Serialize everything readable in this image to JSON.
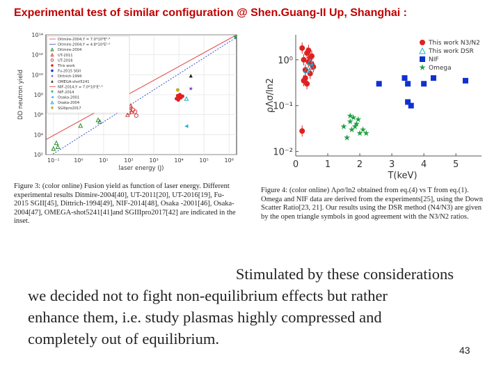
{
  "slide": {
    "title": "Experimental test of similar configuration @ Shen.Guang-II Up, Shanghai :",
    "page_number": "43"
  },
  "figure3": {
    "caption": "Figure 3: (color online) Fusion yield as function of laser energy. Different experimental results Ditmire-2004[40], UT-2011[20], UT-2016[19], Fu-2015 SGII[45], Dittrich-1994[49], NIF-2014[48], Osaka -2001[46], Osaka-2004[47], OMEGA-shot5241[41]and SGIIIpro2017[42] are indicated in the inset.",
    "ylabel": "DD neutron yield",
    "xlabel": "laser energy (J)",
    "legend": [
      "Ditmire-2004,Y = 7.0*10⁵E¹·⁸",
      "Ditmire-2004,Y = 4.8*10³E¹·⁶",
      "Ditmire-2004",
      "UT-2011",
      "UT-2016",
      "This work",
      "Fu-2015 SGII",
      "Dittrich-1994",
      "OMEGA-shot5241",
      "NIF-2014,Y = 7.0*10⁵E¹·⁸",
      "NIF-2014",
      "Osaka-2001",
      "Osaka-2004",
      "SGIIIpro2017"
    ],
    "y_ticks": [
      "10¹⁴",
      "10¹²",
      "10¹⁰",
      "10⁸",
      "10⁶",
      "10⁴",
      "10²"
    ],
    "x_ticks": [
      "10⁻¹",
      "10⁰",
      "10¹",
      "10²",
      "10³",
      "10⁴",
      "10⁵",
      "10⁶"
    ]
  },
  "figure4": {
    "caption": "Figure 4: (color online) Λρσ/ln2 obtained from eq.(4) vs T from eq.(1). Omega and NIF data are derived from the experiments[25], using the Down Scatter Ratio[23, 21]. Our results using the DSR method (N4/N3) are given by the open triangle symbols in good agreement with the N3/N2 ratios.",
    "ylabel": "ρΛσ/ln2",
    "xlabel": "T(keV)",
    "y_ticks": [
      "10⁰",
      "10⁻¹",
      "10⁻²"
    ],
    "x_ticks": [
      "0",
      "1",
      "2",
      "3",
      "4",
      "5"
    ],
    "legend": [
      "This work N3/N2",
      "This work DSR",
      "NIF",
      "Omega"
    ],
    "colors": {
      "this_work": "#e02020",
      "dsr": "#20b0d0",
      "nif": "#1030d0",
      "omega": "#20a040"
    }
  },
  "body_text": {
    "line1": "Stimulated by these considerations",
    "line2": "we decided not to fight non-equilibrium effects but rather",
    "line3": "enhance them, i.e. study plasmas highly compressed and",
    "line4": "completely out of equilibrium."
  },
  "chart_data": [
    {
      "type": "scatter",
      "title": "",
      "xlabel": "laser energy (J)",
      "ylabel": "DD neutron yield",
      "log_x": true,
      "log_y": true,
      "xlim": [
        0.05,
        2000000
      ],
      "ylim": [
        100,
        100000000000000
      ],
      "grid": true,
      "legend_position": "top-left",
      "series": [
        {
          "name": "Ditmire-2004",
          "marker": "triangle-open",
          "color": "#2c8c2c",
          "x": [
            0.1,
            0.13,
            0.15,
            1.2,
            6,
            7
          ],
          "y": [
            400,
            1500,
            600,
            80000,
            300000,
            200000
          ]
        },
        {
          "name": "UT-2011",
          "marker": "triangle-open",
          "color": "#d04040",
          "x": [
            90,
            110,
            120,
            130
          ],
          "y": [
            1000000,
            3000000,
            8000000,
            2000000
          ]
        },
        {
          "name": "UT-2016",
          "marker": "circle-open",
          "color": "#d04040",
          "x": [
            100,
            110,
            150,
            200,
            180
          ],
          "y": [
            1500000,
            5000000,
            3000000,
            800000,
            2000000
          ]
        },
        {
          "name": "This work",
          "marker": "circle",
          "color": "#e02020",
          "x": [
            8000,
            9000,
            10000,
            11000,
            12000,
            14000,
            9500,
            10500
          ],
          "y": [
            40000000,
            80000000,
            60000000,
            100000000,
            50000000,
            70000000,
            30000000,
            45000000
          ]
        },
        {
          "name": "Dittrich-1994",
          "marker": "star",
          "color": "#8030c0",
          "x": [
            30000
          ],
          "y": [
            400000000
          ]
        },
        {
          "name": "OMEGA-shot5241",
          "marker": "triangle",
          "color": "#222222",
          "x": [
            30000
          ],
          "y": [
            8000000000
          ]
        },
        {
          "name": "NIF-2014",
          "marker": "triangle-down",
          "color": "#20a040",
          "x": [
            1800000
          ],
          "y": [
            50000000000000
          ]
        },
        {
          "name": "Osaka-2001",
          "marker": "triangle-left",
          "color": "#20b0d0",
          "x": [
            20000
          ],
          "y": [
            70000
          ]
        },
        {
          "name": "Osaka-2004",
          "marker": "triangle-open",
          "color": "#20b0d0",
          "x": [
            20000
          ],
          "y": [
            40000000
          ]
        },
        {
          "name": "SGIIIpro2017",
          "marker": "circle",
          "color": "#c0b020",
          "x": [
            9000
          ],
          "y": [
            300000000
          ]
        }
      ]
    },
    {
      "type": "scatter",
      "title": "",
      "xlabel": "T(keV)",
      "ylabel": "ρΛσ/ln2",
      "log_y": true,
      "xlim": [
        0,
        5.8
      ],
      "ylim": [
        0.008,
        3.5
      ],
      "grid": false,
      "legend_position": "top-right",
      "series": [
        {
          "name": "This work N3/N2",
          "marker": "circle",
          "color": "#e02020",
          "x": [
            0.2,
            0.25,
            0.3,
            0.35,
            0.4,
            0.45,
            0.5,
            0.55,
            0.3,
            0.4,
            0.5,
            0.25,
            0.45,
            0.35,
            0.2
          ],
          "y": [
            1.8,
            1.0,
            0.6,
            1.4,
            0.9,
            0.5,
            1.2,
            0.7,
            0.4,
            1.6,
            0.8,
            0.35,
            1.1,
            0.3,
            0.028
          ]
        },
        {
          "name": "This work DSR",
          "marker": "triangle-open",
          "color": "#20b0d0",
          "x": [
            0.35,
            0.45,
            0.5
          ],
          "y": [
            0.6,
            0.9,
            0.7
          ]
        },
        {
          "name": "NIF",
          "marker": "square",
          "color": "#1030d0",
          "x": [
            2.6,
            3.4,
            3.5,
            3.6,
            4.0,
            4.3,
            5.3,
            3.5
          ],
          "y": [
            0.3,
            0.4,
            0.12,
            0.1,
            0.3,
            0.4,
            0.35,
            0.3
          ]
        },
        {
          "name": "Omega",
          "marker": "star",
          "color": "#20a040",
          "x": [
            1.5,
            1.7,
            1.8,
            1.9,
            1.75,
            2.0,
            1.6,
            1.85,
            2.1,
            1.95,
            2.2,
            1.7
          ],
          "y": [
            0.035,
            0.045,
            0.055,
            0.04,
            0.03,
            0.025,
            0.02,
            0.035,
            0.03,
            0.05,
            0.025,
            0.06
          ]
        }
      ]
    }
  ]
}
